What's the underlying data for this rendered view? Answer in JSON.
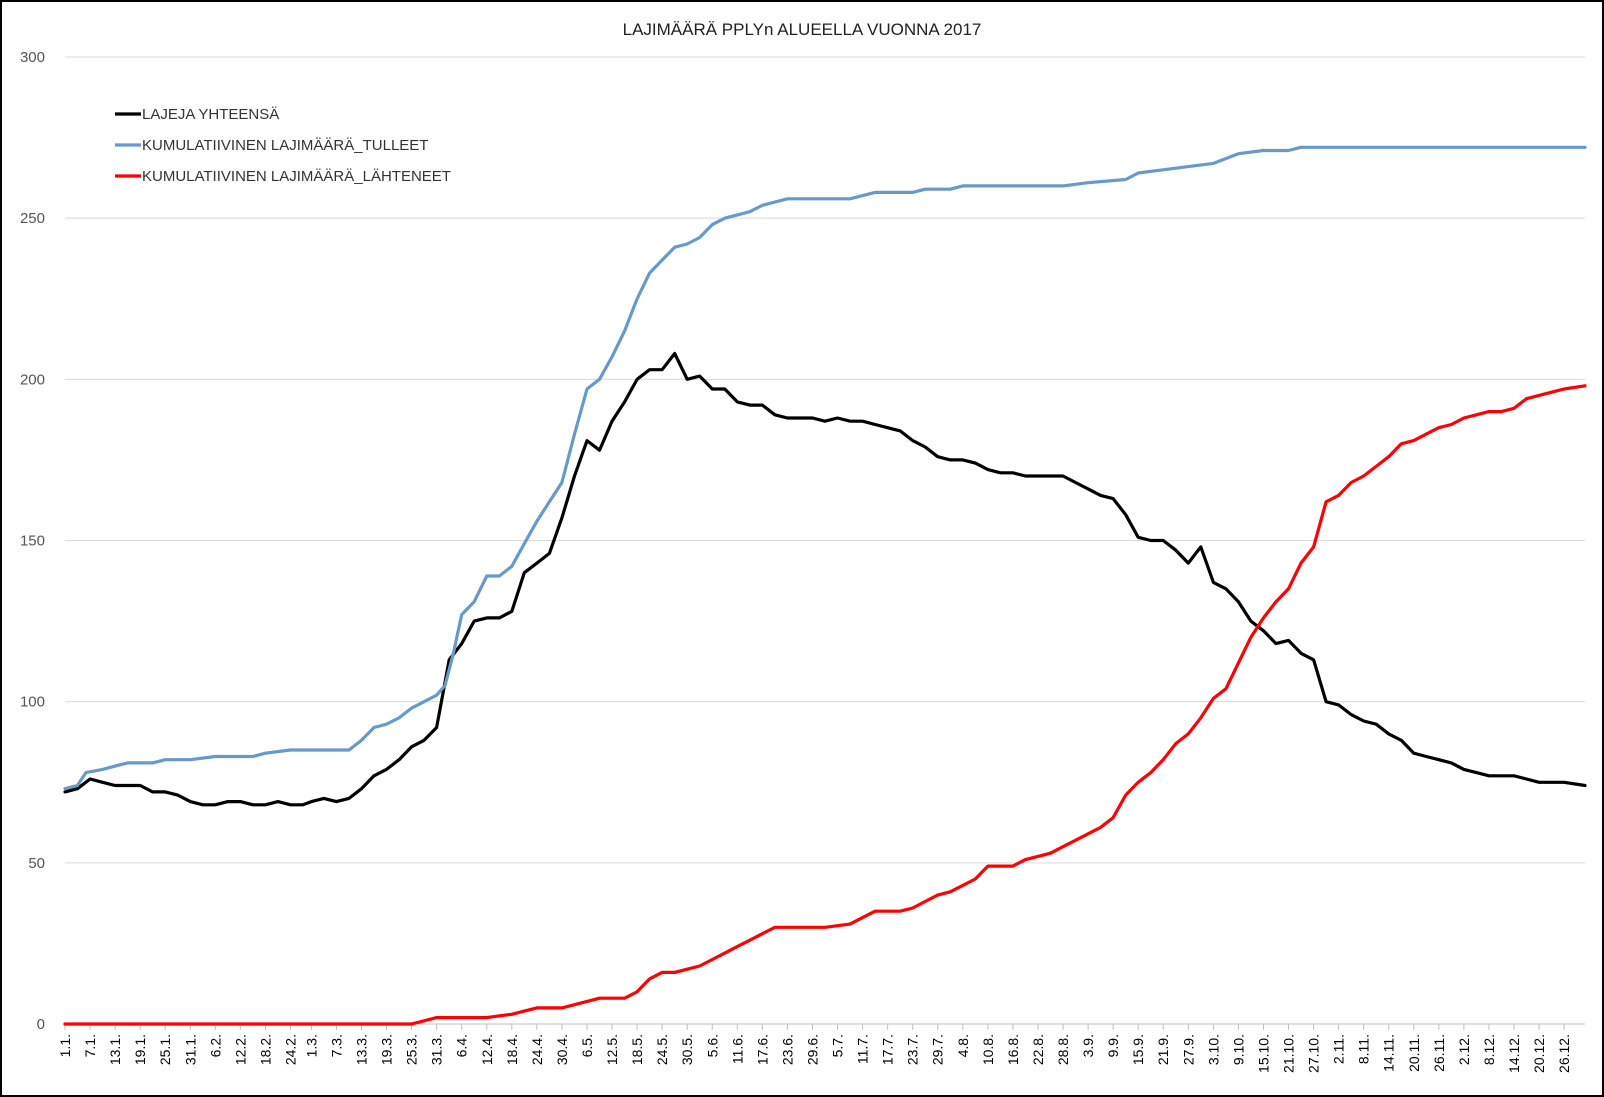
{
  "chart_data": {
    "type": "line",
    "title": "LAJIMÄÄRÄ PPLYn ALUEELLA VUONNA 2017",
    "xlabel": "",
    "ylabel": "",
    "ylim": [
      0,
      300
    ],
    "yticks": [
      0,
      50,
      100,
      150,
      200,
      250,
      300
    ],
    "grid": true,
    "legend_position": "top-left",
    "x_tick_labels": [
      "1.1.",
      "7.1.",
      "13.1.",
      "19.1.",
      "25.1.",
      "31.1.",
      "6.2.",
      "12.2.",
      "18.2.",
      "24.2.",
      "1.3.",
      "7.3.",
      "13.3.",
      "19.3.",
      "25.3.",
      "31.3.",
      "6.4.",
      "12.4.",
      "18.4.",
      "24.4.",
      "30.4.",
      "6.5.",
      "12.5.",
      "18.5.",
      "24.5.",
      "30.5.",
      "5.6.",
      "11.6.",
      "17.6.",
      "23.6.",
      "29.6.",
      "5.7.",
      "11.7.",
      "17.7.",
      "23.7.",
      "29.7.",
      "4.8.",
      "10.8.",
      "16.8.",
      "22.8.",
      "28.8.",
      "3.9.",
      "9.9.",
      "15.9.",
      "21.9.",
      "27.9.",
      "3.10.",
      "9.10.",
      "15.10.",
      "21.10.",
      "27.10.",
      "2.11.",
      "8.11.",
      "14.11.",
      "20.11.",
      "26.11.",
      "2.12.",
      "8.12.",
      "14.12.",
      "20.12.",
      "26.12."
    ],
    "series": [
      {
        "name": "LAJEJA YHTEENSÄ",
        "color": "#000000",
        "points": [
          [
            "1.1.",
            72
          ],
          [
            "4.1.",
            73
          ],
          [
            "7.1.",
            76
          ],
          [
            "10.1.",
            75
          ],
          [
            "13.1.",
            74
          ],
          [
            "16.1.",
            74
          ],
          [
            "19.1.",
            74
          ],
          [
            "22.1.",
            72
          ],
          [
            "25.1.",
            72
          ],
          [
            "28.1.",
            71
          ],
          [
            "31.1.",
            69
          ],
          [
            "3.2.",
            68
          ],
          [
            "6.2.",
            68
          ],
          [
            "9.2.",
            69
          ],
          [
            "12.2.",
            69
          ],
          [
            "15.2.",
            68
          ],
          [
            "18.2.",
            68
          ],
          [
            "21.2.",
            69
          ],
          [
            "24.2.",
            68
          ],
          [
            "27.2.",
            68
          ],
          [
            "1.3.",
            69
          ],
          [
            "4.3.",
            70
          ],
          [
            "7.3.",
            69
          ],
          [
            "10.3.",
            70
          ],
          [
            "13.3.",
            73
          ],
          [
            "16.3.",
            77
          ],
          [
            "19.3.",
            79
          ],
          [
            "22.3.",
            82
          ],
          [
            "25.3.",
            86
          ],
          [
            "28.3.",
            88
          ],
          [
            "31.3.",
            92
          ],
          [
            "3.4.",
            113
          ],
          [
            "6.4.",
            118
          ],
          [
            "9.4.",
            125
          ],
          [
            "12.4.",
            126
          ],
          [
            "15.4.",
            126
          ],
          [
            "18.4.",
            128
          ],
          [
            "21.4.",
            140
          ],
          [
            "24.4.",
            143
          ],
          [
            "27.4.",
            146
          ],
          [
            "30.4.",
            157
          ],
          [
            "3.5.",
            170
          ],
          [
            "6.5.",
            181
          ],
          [
            "9.5.",
            178
          ],
          [
            "12.5.",
            187
          ],
          [
            "15.5.",
            193
          ],
          [
            "18.5.",
            200
          ],
          [
            "21.5.",
            203
          ],
          [
            "24.5.",
            203
          ],
          [
            "27.5.",
            208
          ],
          [
            "30.5.",
            200
          ],
          [
            "2.6.",
            201
          ],
          [
            "5.6.",
            197
          ],
          [
            "8.6.",
            197
          ],
          [
            "11.6.",
            193
          ],
          [
            "14.6.",
            192
          ],
          [
            "17.6.",
            192
          ],
          [
            "20.6.",
            189
          ],
          [
            "23.6.",
            188
          ],
          [
            "26.6.",
            188
          ],
          [
            "29.6.",
            188
          ],
          [
            "2.7.",
            187
          ],
          [
            "5.7.",
            188
          ],
          [
            "8.7.",
            187
          ],
          [
            "11.7.",
            187
          ],
          [
            "14.7.",
            186
          ],
          [
            "17.7.",
            185
          ],
          [
            "20.7.",
            184
          ],
          [
            "23.7.",
            181
          ],
          [
            "26.7.",
            179
          ],
          [
            "29.7.",
            176
          ],
          [
            "1.8.",
            175
          ],
          [
            "4.8.",
            175
          ],
          [
            "7.8.",
            174
          ],
          [
            "10.8.",
            172
          ],
          [
            "13.8.",
            171
          ],
          [
            "16.8.",
            171
          ],
          [
            "19.8.",
            170
          ],
          [
            "22.8.",
            170
          ],
          [
            "25.8.",
            170
          ],
          [
            "28.8.",
            170
          ],
          [
            "31.8.",
            168
          ],
          [
            "3.9.",
            166
          ],
          [
            "6.9.",
            164
          ],
          [
            "9.9.",
            163
          ],
          [
            "12.9.",
            158
          ],
          [
            "15.9.",
            151
          ],
          [
            "18.9.",
            150
          ],
          [
            "21.9.",
            150
          ],
          [
            "24.9.",
            147
          ],
          [
            "27.9.",
            143
          ],
          [
            "30.9.",
            148
          ],
          [
            "3.10.",
            137
          ],
          [
            "6.10.",
            135
          ],
          [
            "9.10.",
            131
          ],
          [
            "12.10.",
            125
          ],
          [
            "15.10.",
            122
          ],
          [
            "18.10.",
            118
          ],
          [
            "21.10.",
            119
          ],
          [
            "24.10.",
            115
          ],
          [
            "27.10.",
            113
          ],
          [
            "30.10.",
            100
          ],
          [
            "2.11.",
            99
          ],
          [
            "5.11.",
            96
          ],
          [
            "8.11.",
            94
          ],
          [
            "11.11.",
            93
          ],
          [
            "14.11.",
            90
          ],
          [
            "17.11.",
            88
          ],
          [
            "20.11.",
            84
          ],
          [
            "23.11.",
            83
          ],
          [
            "26.11.",
            82
          ],
          [
            "29.11.",
            81
          ],
          [
            "2.12.",
            79
          ],
          [
            "5.12.",
            78
          ],
          [
            "8.12.",
            77
          ],
          [
            "11.12.",
            77
          ],
          [
            "14.12.",
            77
          ],
          [
            "17.12.",
            76
          ],
          [
            "20.12.",
            75
          ],
          [
            "23.12.",
            75
          ],
          [
            "26.12.",
            75
          ],
          [
            "31.12.",
            74
          ]
        ]
      },
      {
        "name": "KUMULATIIVINEN LAJIMÄÄRÄ_TULLEET",
        "color": "#6699cc",
        "points": [
          [
            "1.1.",
            73
          ],
          [
            "4.1.",
            74
          ],
          [
            "6.1.",
            78
          ],
          [
            "10.1.",
            79
          ],
          [
            "13.1.",
            80
          ],
          [
            "16.1.",
            81
          ],
          [
            "22.1.",
            81
          ],
          [
            "25.1.",
            82
          ],
          [
            "31.1.",
            82
          ],
          [
            "6.2.",
            83
          ],
          [
            "15.2.",
            83
          ],
          [
            "18.2.",
            84
          ],
          [
            "24.2.",
            85
          ],
          [
            "4.3.",
            85
          ],
          [
            "10.3.",
            85
          ],
          [
            "13.3.",
            88
          ],
          [
            "16.3.",
            92
          ],
          [
            "19.3.",
            93
          ],
          [
            "22.3.",
            95
          ],
          [
            "25.3.",
            98
          ],
          [
            "28.3.",
            100
          ],
          [
            "31.3.",
            102
          ],
          [
            "2.4.",
            105
          ],
          [
            "4.4.",
            115
          ],
          [
            "6.4.",
            127
          ],
          [
            "9.4.",
            131
          ],
          [
            "12.4.",
            139
          ],
          [
            "15.4.",
            139
          ],
          [
            "18.4.",
            142
          ],
          [
            "21.4.",
            149
          ],
          [
            "24.4.",
            156
          ],
          [
            "27.4.",
            162
          ],
          [
            "30.4.",
            168
          ],
          [
            "3.5.",
            183
          ],
          [
            "6.5.",
            197
          ],
          [
            "9.5.",
            200
          ],
          [
            "12.5.",
            207
          ],
          [
            "15.5.",
            215
          ],
          [
            "18.5.",
            225
          ],
          [
            "21.5.",
            233
          ],
          [
            "24.5.",
            237
          ],
          [
            "27.5.",
            241
          ],
          [
            "30.5.",
            242
          ],
          [
            "2.6.",
            244
          ],
          [
            "5.6.",
            248
          ],
          [
            "8.6.",
            250
          ],
          [
            "11.6.",
            251
          ],
          [
            "14.6.",
            252
          ],
          [
            "17.6.",
            254
          ],
          [
            "20.6.",
            255
          ],
          [
            "23.6.",
            256
          ],
          [
            "2.7.",
            256
          ],
          [
            "8.7.",
            256
          ],
          [
            "11.7.",
            257
          ],
          [
            "14.7.",
            258
          ],
          [
            "23.7.",
            258
          ],
          [
            "26.7.",
            259
          ],
          [
            "1.8.",
            259
          ],
          [
            "4.8.",
            260
          ],
          [
            "28.8.",
            260
          ],
          [
            "3.9.",
            261
          ],
          [
            "12.9.",
            262
          ],
          [
            "15.9.",
            264
          ],
          [
            "21.9.",
            265
          ],
          [
            "27.9.",
            266
          ],
          [
            "3.10.",
            267
          ],
          [
            "9.10.",
            270
          ],
          [
            "15.10.",
            271
          ],
          [
            "21.10.",
            271
          ],
          [
            "24.10.",
            272
          ],
          [
            "31.12.",
            272
          ]
        ]
      },
      {
        "name": "KUMULATIIVINEN LAJIMÄÄRÄ_LÄHTENEET",
        "color": "#ff0000",
        "points": [
          [
            "1.1.",
            0
          ],
          [
            "25.3.",
            0
          ],
          [
            "28.3.",
            1
          ],
          [
            "31.3.",
            2
          ],
          [
            "12.4.",
            2
          ],
          [
            "18.4.",
            3
          ],
          [
            "21.4.",
            4
          ],
          [
            "24.4.",
            5
          ],
          [
            "30.4.",
            5
          ],
          [
            "3.5.",
            6
          ],
          [
            "6.5.",
            7
          ],
          [
            "9.5.",
            8
          ],
          [
            "15.5.",
            8
          ],
          [
            "18.5.",
            10
          ],
          [
            "21.5.",
            14
          ],
          [
            "24.5.",
            16
          ],
          [
            "27.5.",
            16
          ],
          [
            "30.5.",
            17
          ],
          [
            "2.6.",
            18
          ],
          [
            "5.6.",
            20
          ],
          [
            "8.6.",
            22
          ],
          [
            "11.6.",
            24
          ],
          [
            "14.6.",
            26
          ],
          [
            "17.6.",
            28
          ],
          [
            "20.6.",
            30
          ],
          [
            "2.7.",
            30
          ],
          [
            "8.7.",
            31
          ],
          [
            "11.7.",
            33
          ],
          [
            "14.7.",
            35
          ],
          [
            "20.7.",
            35
          ],
          [
            "23.7.",
            36
          ],
          [
            "26.7.",
            38
          ],
          [
            "29.7.",
            40
          ],
          [
            "1.8.",
            41
          ],
          [
            "4.8.",
            43
          ],
          [
            "7.8.",
            45
          ],
          [
            "10.8.",
            49
          ],
          [
            "16.8.",
            49
          ],
          [
            "19.8.",
            51
          ],
          [
            "22.8.",
            52
          ],
          [
            "25.8.",
            53
          ],
          [
            "28.8.",
            55
          ],
          [
            "31.8.",
            57
          ],
          [
            "3.9.",
            59
          ],
          [
            "6.9.",
            61
          ],
          [
            "9.9.",
            64
          ],
          [
            "12.9.",
            71
          ],
          [
            "15.9.",
            75
          ],
          [
            "18.9.",
            78
          ],
          [
            "21.9.",
            82
          ],
          [
            "24.9.",
            87
          ],
          [
            "27.9.",
            90
          ],
          [
            "30.9.",
            95
          ],
          [
            "3.10.",
            101
          ],
          [
            "6.10.",
            104
          ],
          [
            "9.10.",
            112
          ],
          [
            "12.10.",
            120
          ],
          [
            "15.10.",
            126
          ],
          [
            "18.10.",
            131
          ],
          [
            "21.10.",
            135
          ],
          [
            "24.10.",
            143
          ],
          [
            "27.10.",
            148
          ],
          [
            "30.10.",
            162
          ],
          [
            "2.11.",
            164
          ],
          [
            "5.11.",
            168
          ],
          [
            "8.11.",
            170
          ],
          [
            "11.11.",
            173
          ],
          [
            "14.11.",
            176
          ],
          [
            "17.11.",
            180
          ],
          [
            "20.11.",
            181
          ],
          [
            "23.11.",
            183
          ],
          [
            "26.11.",
            185
          ],
          [
            "29.11.",
            186
          ],
          [
            "2.12.",
            188
          ],
          [
            "5.12.",
            189
          ],
          [
            "8.12.",
            190
          ],
          [
            "11.12.",
            190
          ],
          [
            "14.12.",
            191
          ],
          [
            "17.12.",
            194
          ],
          [
            "20.12.",
            195
          ],
          [
            "23.12.",
            196
          ],
          [
            "26.12.",
            197
          ],
          [
            "31.12.",
            198
          ]
        ]
      }
    ]
  }
}
